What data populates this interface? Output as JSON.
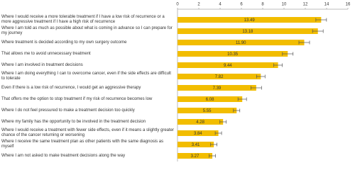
{
  "chart_data": {
    "type": "bar",
    "orientation": "horizontal",
    "categories": [
      "Where I would receive a more tolerable treatment if I have a low risk of recurrence or a more aggressive treatment if I have a high risk of recurrence",
      "Where I am told as much as possible about what is coming in advance so I can prepare for my journey",
      "Where treatment is decided according to my own surgery outcome",
      "That allows me to avoid unnecessary treatment",
      "Where I am involved in treatment decisions",
      "Where I am doing everything I can to overcome cancer, even if the side effects are difficult to tolerate",
      "Even if there is a low risk of recurrence, I would get an aggressive therapy",
      "That offers me the option to stop treatment if my risk of recurrence becomes low",
      "Where I do not feel pressured to make a treatment decision too quickly",
      "Where my family has the opportunity to be involved in the treatment decision",
      "Where I would receive a treatment with fewer side effects, even if it means a slightly greater chance of the cancer returning or worsening",
      "Where I receive the same treatment plan as other patients with the same diagnosis as myself",
      "Where I am not asked to make treatment decisions along the way"
    ],
    "values": [
      13.49,
      13.18,
      11.9,
      10.35,
      9.44,
      7.82,
      7.39,
      6.08,
      5.55,
      4.28,
      3.84,
      3.41,
      3.27
    ],
    "value_labels": [
      "13.49",
      "13.18",
      "11.90",
      "10.35",
      "9.44",
      "7.82",
      "7.39",
      "6.08",
      "5.55",
      "4.28",
      "3.84",
      "3.41",
      "3.27"
    ],
    "errors": [
      0.5,
      0.5,
      0.5,
      0.5,
      0.4,
      0.4,
      0.5,
      0.4,
      0.3,
      0.3,
      0.3,
      0.3,
      0.3
    ],
    "color": "#f2bd00",
    "xlim": [
      0,
      16
    ],
    "xticks": [
      0,
      2,
      4,
      6,
      8,
      10,
      12,
      14,
      16
    ],
    "grid": false
  }
}
